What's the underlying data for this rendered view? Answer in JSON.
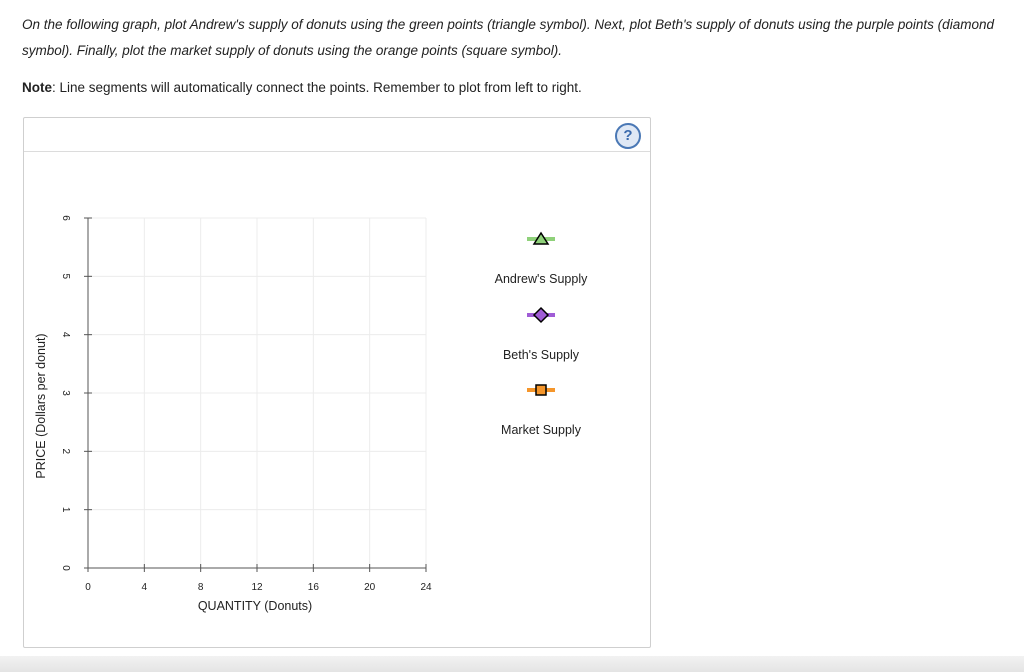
{
  "instructions": {
    "main_text": "On the following graph, plot Andrew's supply of donuts using the green points (triangle symbol). Next, plot Beth's supply of donuts using the purple points (diamond symbol). Finally, plot the market supply of donuts using the orange points (square symbol).",
    "note_label": "Note",
    "note_text": ": Line segments will automatically connect the points. Remember to plot from left to right."
  },
  "help": {
    "label": "?"
  },
  "chart_data": {
    "type": "scatter",
    "xlabel": "QUANTITY (Donuts)",
    "ylabel": "PRICE (Dollars per donut)",
    "xlim": [
      0,
      24
    ],
    "ylim": [
      0,
      6
    ],
    "x_ticks": [
      "0",
      "4",
      "8",
      "12",
      "16",
      "20",
      "24"
    ],
    "y_ticks": [
      "0",
      "1",
      "2",
      "3",
      "4",
      "5",
      "6"
    ],
    "grid": true,
    "series": []
  },
  "legend": [
    {
      "label": "Andrew's Supply",
      "symbol": "triangle",
      "color": "#8fd17a"
    },
    {
      "label": "Beth's Supply",
      "symbol": "diamond",
      "color": "#a05cd6"
    },
    {
      "label": "Market Supply",
      "symbol": "square",
      "color": "#f5962b"
    }
  ]
}
